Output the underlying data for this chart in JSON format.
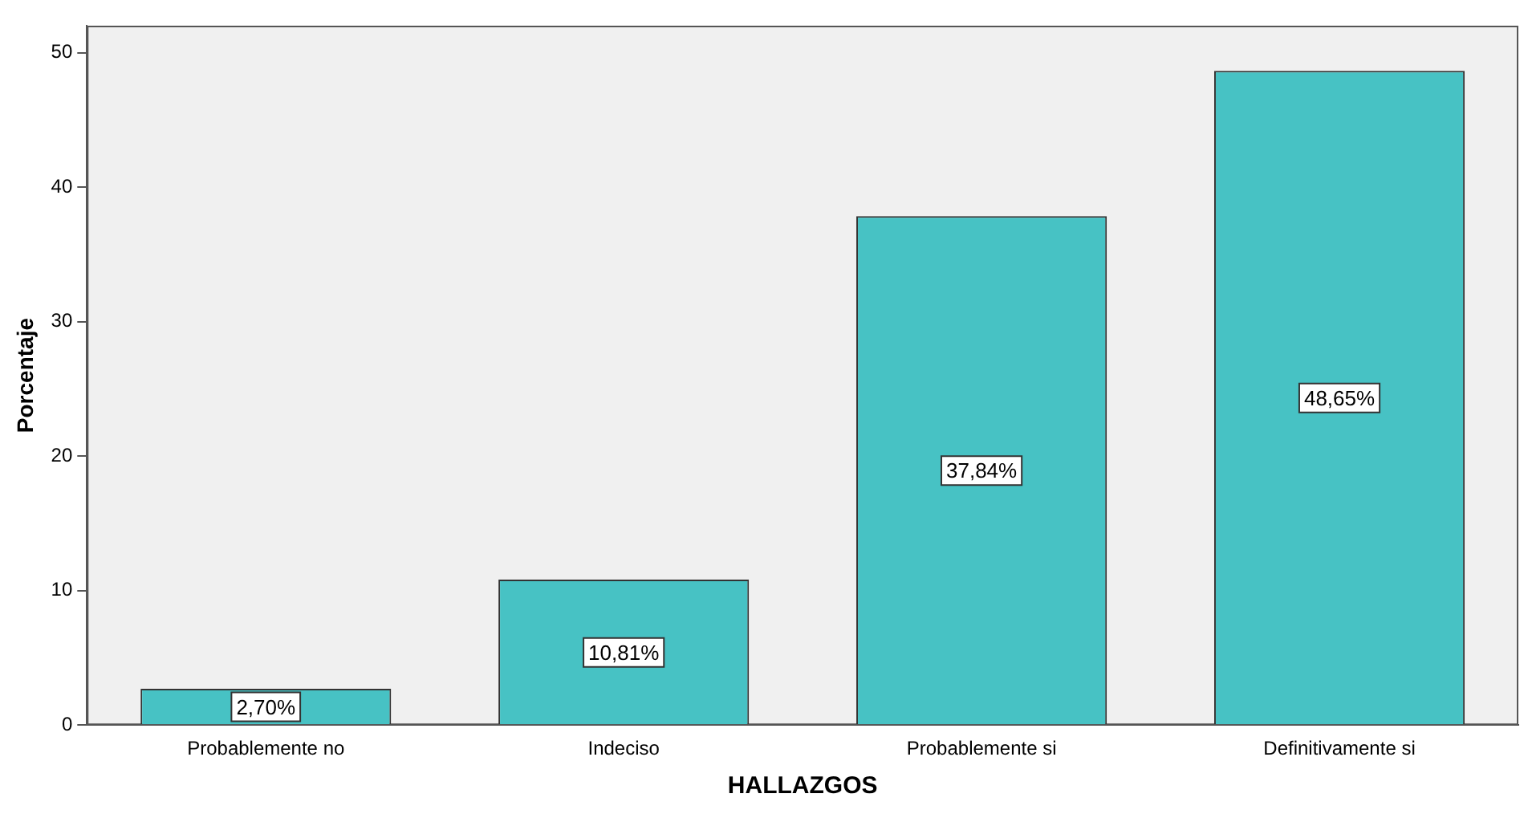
{
  "chart_data": {
    "type": "bar",
    "xlabel": "HALLAZGOS",
    "ylabel": "Porcentaje",
    "categories": [
      "Probablemente no",
      "Indeciso",
      "Probablemente si",
      "Definitivamente si"
    ],
    "values": [
      2.7,
      10.81,
      37.84,
      48.65
    ],
    "value_labels": [
      "2,70%",
      "10,81%",
      "37,84%",
      "48,65%"
    ],
    "color": "#47c2c4",
    "ylim": [
      0,
      52
    ],
    "yticks": [
      0,
      10,
      20,
      30,
      40,
      50
    ],
    "grid": false,
    "legend": false
  }
}
